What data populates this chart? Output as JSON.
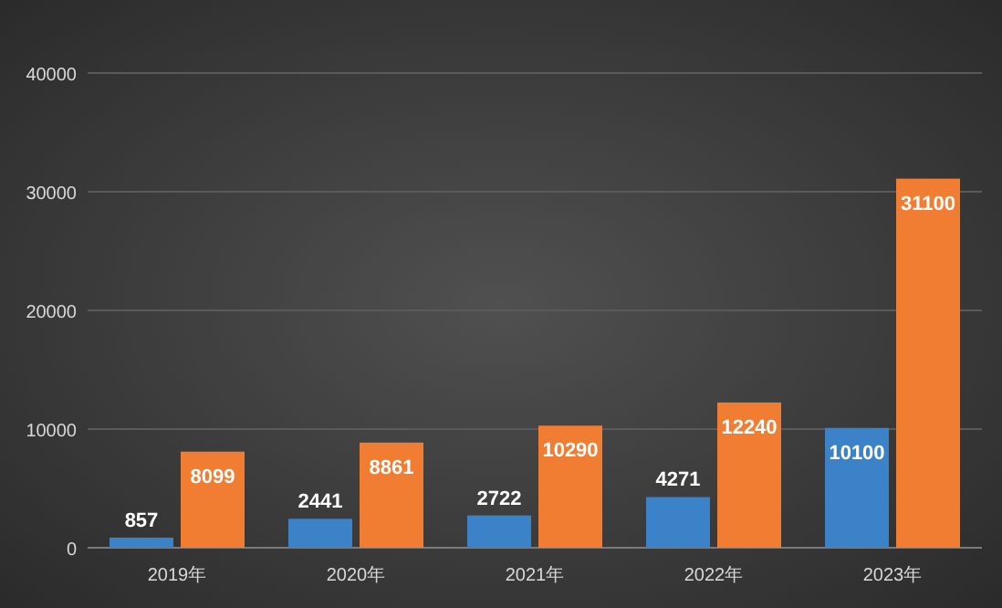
{
  "chart_data": {
    "type": "bar",
    "categories": [
      "2019年",
      "2020年",
      "2021年",
      "2022年",
      "2023年"
    ],
    "series": [
      {
        "color": "#3c82c8",
        "values": [
          857,
          2441,
          2722,
          4271,
          10100
        ]
      },
      {
        "color": "#f07d32",
        "values": [
          8099,
          8861,
          10290,
          12240,
          31100
        ]
      }
    ],
    "ylim": [
      0,
      40000
    ],
    "yticks": [
      0,
      10000,
      20000,
      30000,
      40000
    ],
    "grid": "y",
    "data_labels": true
  }
}
